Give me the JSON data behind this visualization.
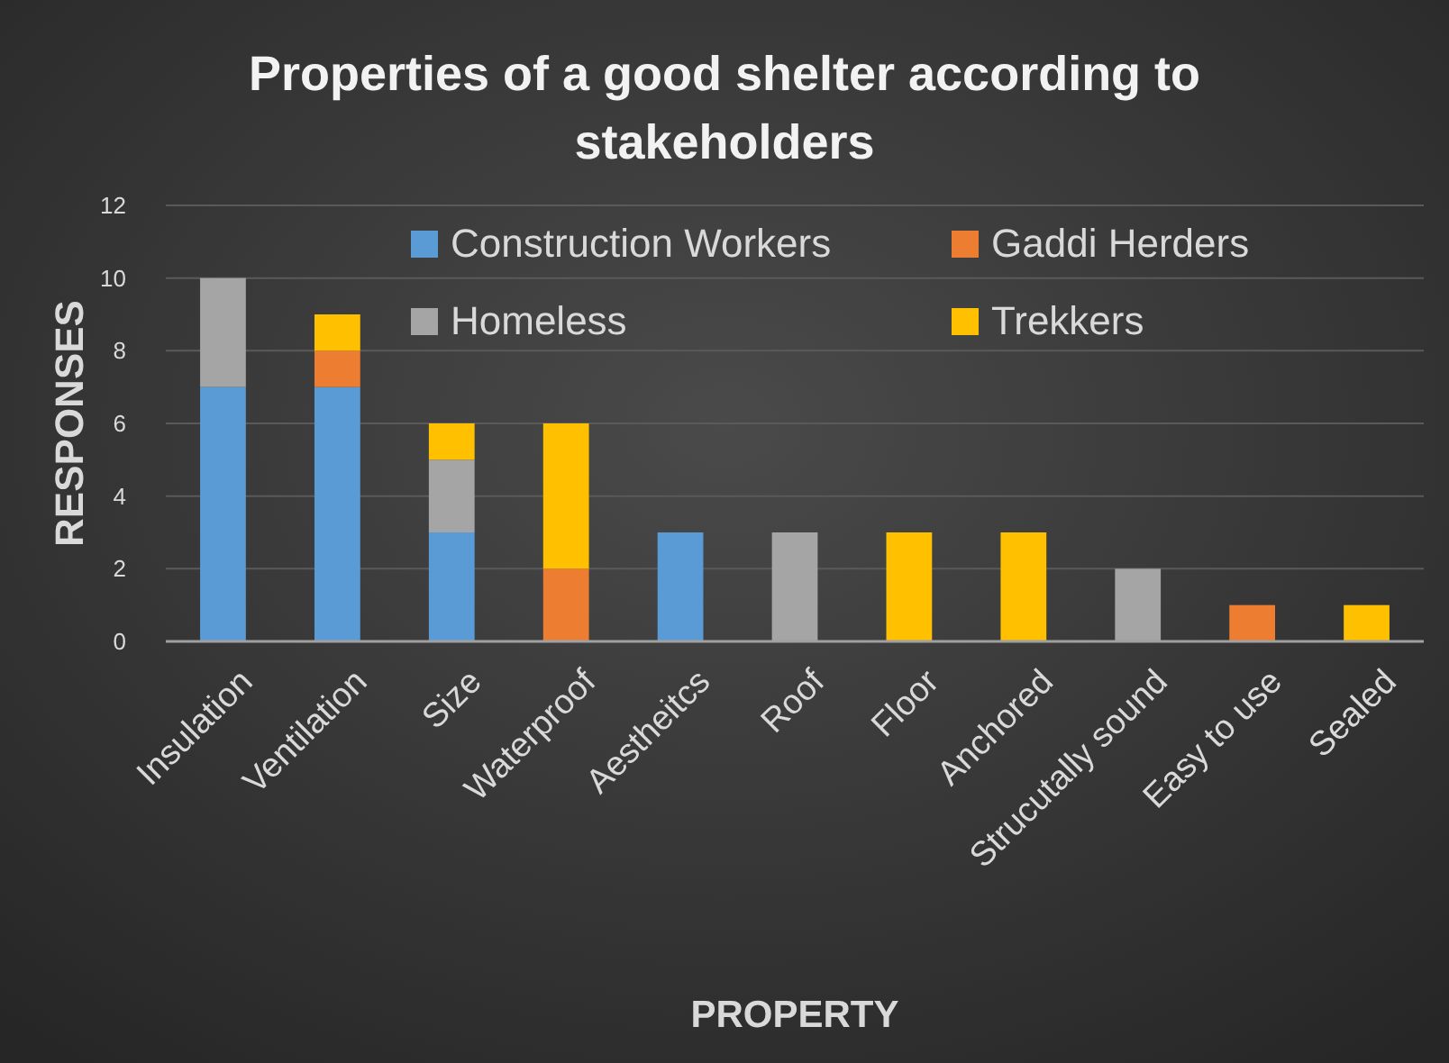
{
  "chart_data": {
    "type": "bar",
    "title": "Properties of a good shelter according to stakeholders",
    "xlabel": "PROPERTY",
    "ylabel": "RESPONSES",
    "categories": [
      "Insulation",
      "Ventilation",
      "Size",
      "Waterproof",
      "Aestheitcs",
      "Roof",
      "Floor",
      "Anchored",
      "Strucutally sound",
      "Easy to use",
      "Sealed"
    ],
    "series": [
      {
        "name": "Construction Workers",
        "color": "#5b9bd5",
        "values": [
          7,
          7,
          3,
          0,
          3,
          0,
          0,
          0,
          0,
          0,
          0
        ]
      },
      {
        "name": "Gaddi Herders",
        "color": "#ed7d31",
        "values": [
          0,
          1,
          0,
          2,
          0,
          0,
          0,
          0,
          0,
          1,
          0
        ]
      },
      {
        "name": "Homeless",
        "color": "#a5a5a5",
        "values": [
          3,
          0,
          2,
          0,
          0,
          3,
          0,
          0,
          2,
          0,
          0
        ]
      },
      {
        "name": "Trekkers",
        "color": "#ffc000",
        "values": [
          0,
          1,
          1,
          4,
          0,
          0,
          3,
          3,
          0,
          0,
          1
        ]
      }
    ],
    "stacked": true,
    "ylim": [
      0,
      12
    ],
    "yticks": [
      0,
      2,
      4,
      6,
      8,
      10,
      12
    ],
    "grid": "y",
    "legend": "top"
  }
}
